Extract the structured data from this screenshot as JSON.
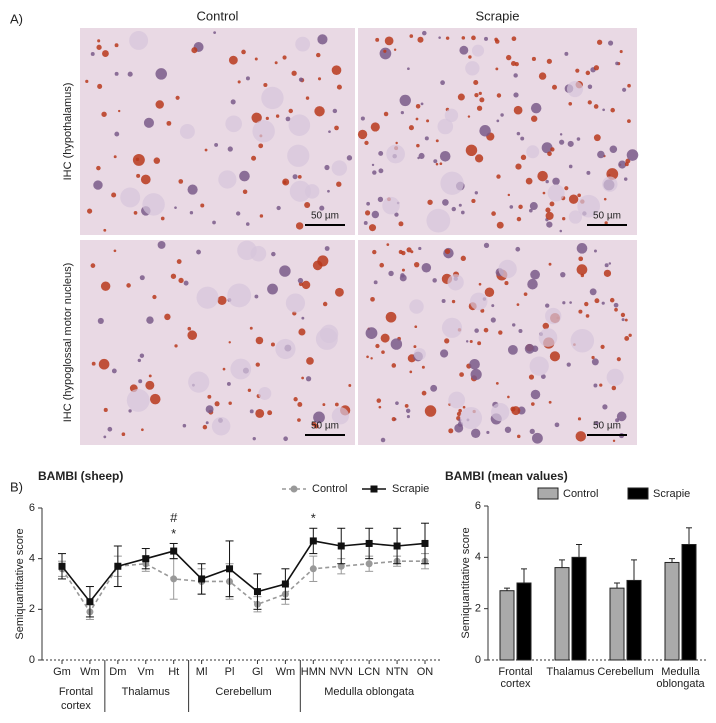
{
  "panel_a": {
    "label": "A)",
    "columns": [
      "Control",
      "Scrapie"
    ],
    "rows": [
      "IHC (hypothalamus)",
      "IHC (hypoglossal motor nucleus)"
    ],
    "scale_bar": "50 µm"
  },
  "panel_b_label": "B)",
  "chart_data": [
    {
      "type": "line",
      "title": "BAMBI (sheep)",
      "y_label": "Semiquantitative score",
      "categories": [
        "Gm",
        "Wm",
        "Dm",
        "Vm",
        "Ht",
        "Ml",
        "Pl",
        "Gl",
        "Wm",
        "HMN",
        "NVN",
        "LCN",
        "NTN",
        "ON"
      ],
      "groups": [
        "Frontal cortex",
        "Thalamus",
        "Cerebellum",
        "Medulla oblongata"
      ],
      "series": [
        {
          "name": "Control",
          "color": "#999999",
          "values": [
            3.6,
            1.9,
            3.7,
            3.8,
            3.2,
            3.1,
            3.1,
            2.2,
            2.6,
            3.6,
            3.7,
            3.8,
            3.9,
            3.9
          ],
          "errors": [
            0.3,
            0.3,
            0.4,
            0.3,
            0.8,
            0.5,
            0.7,
            0.3,
            0.4,
            0.5,
            0.3,
            0.3,
            0.2,
            0.3
          ]
        },
        {
          "name": "Scrapie",
          "color": "#111111",
          "values": [
            3.7,
            2.3,
            3.7,
            4.0,
            4.3,
            3.2,
            3.6,
            2.7,
            3.0,
            4.7,
            4.5,
            4.6,
            4.5,
            4.6
          ],
          "errors": [
            0.5,
            0.6,
            0.8,
            0.4,
            0.3,
            0.6,
            1.1,
            0.7,
            0.6,
            0.5,
            0.7,
            0.6,
            0.7,
            0.8
          ]
        }
      ],
      "annotations": [
        {
          "text": "#",
          "category": "Ht"
        },
        {
          "text": "*",
          "category": "Ht"
        },
        {
          "text": "*",
          "category": "HMN"
        }
      ],
      "ylim": [
        0,
        6
      ],
      "yticks": [
        0,
        2,
        4,
        6
      ]
    },
    {
      "type": "bar",
      "title": "BAMBI (mean values)",
      "y_label": "Semiquantitative score",
      "categories": [
        "Frontal cortex",
        "Thalamus",
        "Cerebellum",
        "Medulla oblongata"
      ],
      "series": [
        {
          "name": "Control",
          "color": "#aaaaaa",
          "values": [
            2.7,
            3.6,
            2.8,
            3.8
          ],
          "errors": [
            0.1,
            0.3,
            0.2,
            0.15
          ]
        },
        {
          "name": "Scrapie",
          "color": "#000000",
          "values": [
            3.0,
            4.0,
            3.1,
            4.5
          ],
          "errors": [
            0.55,
            0.5,
            0.8,
            0.65
          ]
        }
      ],
      "ylim": [
        0,
        6
      ],
      "yticks": [
        0,
        2,
        4,
        6
      ]
    }
  ]
}
